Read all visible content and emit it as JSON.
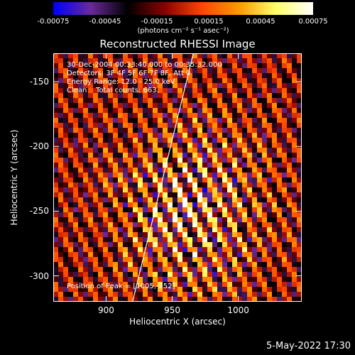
{
  "colorbar": {
    "ticks": [
      "-0.00075",
      "-0.00045",
      "-0.00015",
      "0.00015",
      "0.00045",
      "0.00075"
    ],
    "units": "(photons cm⁻² s⁻¹ asec⁻²)",
    "range": [
      -0.00075,
      0.00075
    ]
  },
  "title": "Reconstructed RHESSI Image",
  "info": {
    "line1": "30-Dec-2004 00:33:40.000 to 00:35:32.000",
    "line2": "Detectors: 3F 4F 5F 6F 7F 8F, Att 0",
    "line3": "Energy Range: 12.0 - 25.0 keV",
    "line4": "Clean    Total counts: 663.",
    "peak": "Position of Peak = [1005,-252]"
  },
  "date": "5-May-2022 17:30",
  "chart_data": {
    "type": "heatmap",
    "title": "Reconstructed RHESSI Image",
    "xlabel": "Heliocentric X (arcsec)",
    "ylabel": "Heliocentric Y (arcsec)",
    "xlim": [
      860,
      1048
    ],
    "ylim": [
      -320,
      -128
    ],
    "xticks": [
      900,
      950,
      1000
    ],
    "yticks": [
      -150,
      -200,
      -250,
      -300
    ],
    "colormap": [
      "#0000ff",
      "#6a2a9a",
      "#000000",
      "#8b0000",
      "#ff4500",
      "#ff9900",
      "#ffff66",
      "#ffffff"
    ],
    "pattern": "diagonal fringes, brighter toward lower center",
    "limb_line": {
      "x": [
        920,
        966
      ],
      "y": [
        -320,
        -128
      ]
    }
  }
}
